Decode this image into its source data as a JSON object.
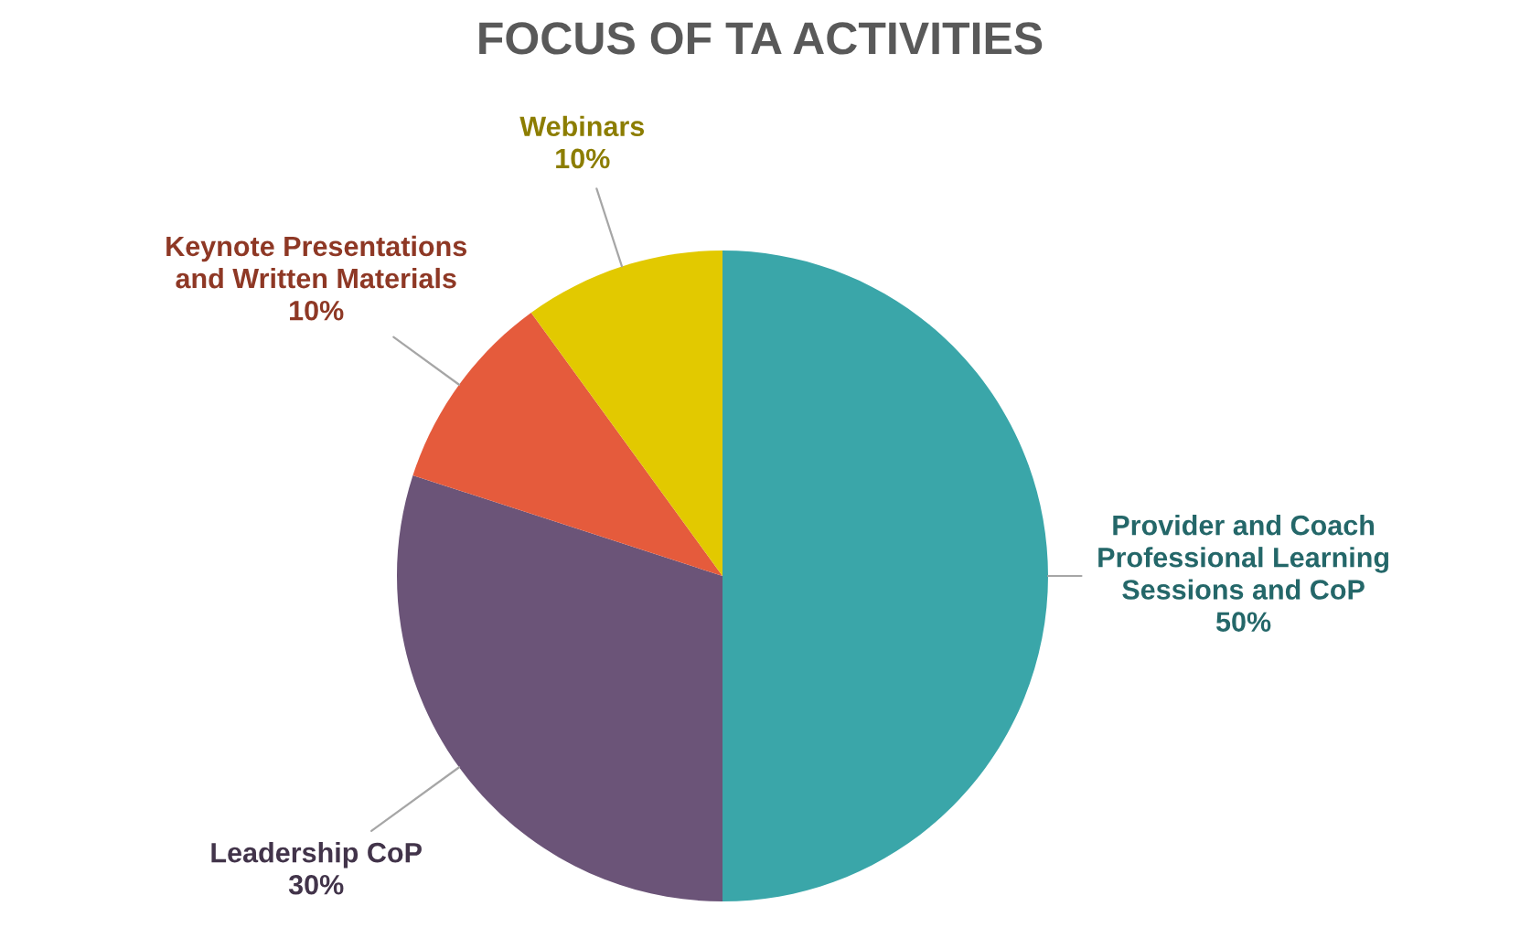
{
  "chart_data": {
    "type": "pie",
    "title": "FOCUS OF TA ACTIVITIES",
    "categories": [
      "Provider and Coach\nProfessional Learning\nSessions and CoP",
      "Leadership CoP",
      "Keynote Presentations\nand Written Materials",
      "Webinars"
    ],
    "values": [
      50,
      30,
      10,
      10
    ],
    "colors": [
      "#3aa6a9",
      "#6b5478",
      "#e55b3c",
      "#e2c900"
    ],
    "value_labels": [
      "50%",
      "30%",
      "10%",
      "10%"
    ]
  }
}
